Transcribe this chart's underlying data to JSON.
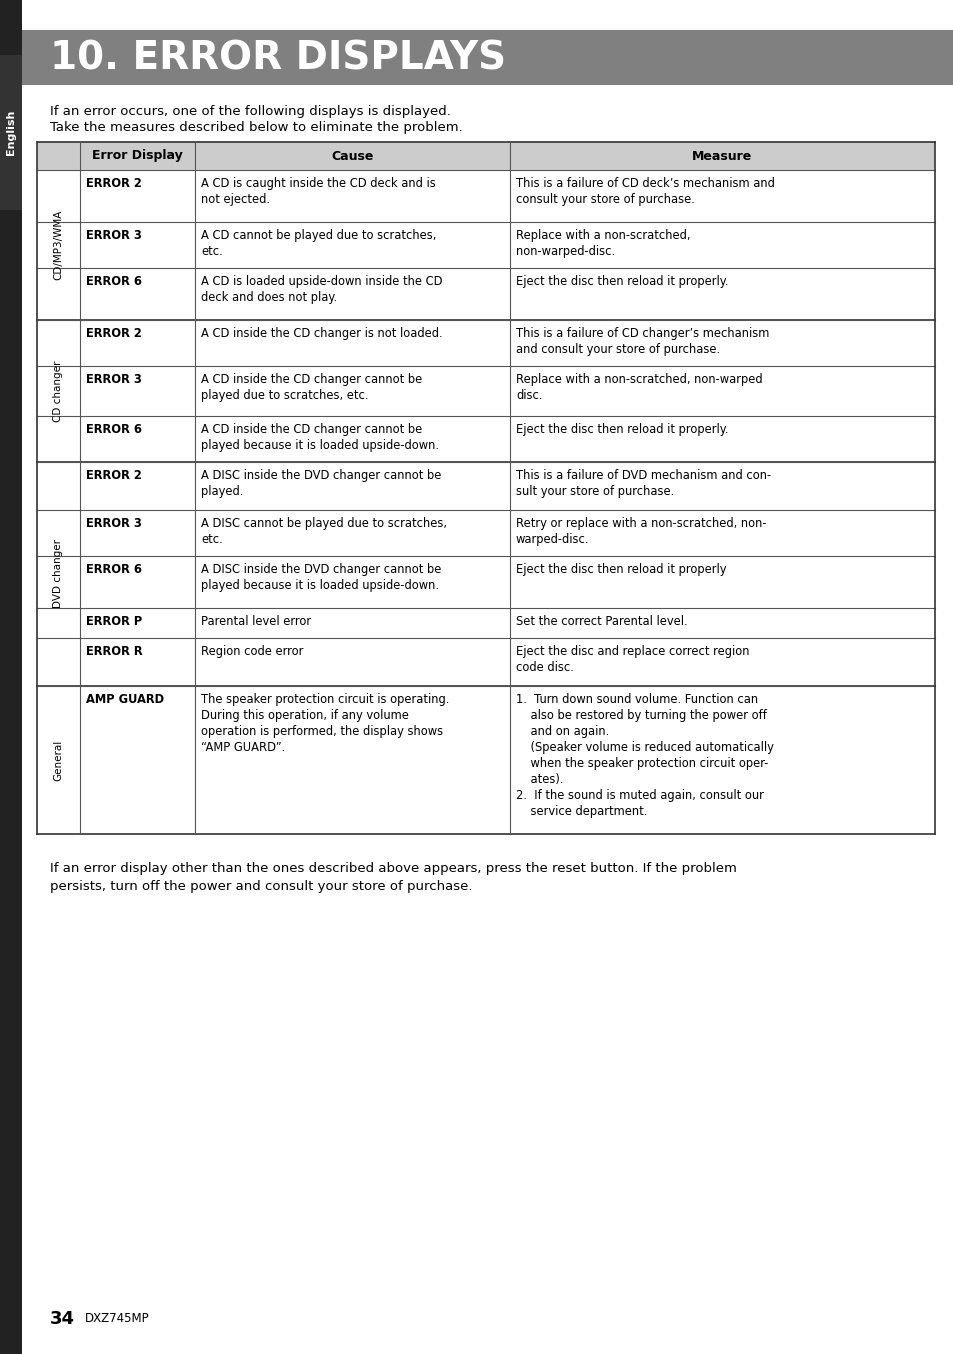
{
  "title": "10. ERROR DISPLAYS",
  "title_bg": "#808080",
  "title_color": "#ffffff",
  "page_bg": "#ffffff",
  "sidebar_bg": "#222222",
  "english_tab_bg": "#333333",
  "intro_line1": "If an error occurs, one of the following displays is displayed.",
  "intro_line2": "Take the measures described below to eliminate the problem.",
  "header_bg": "#cccccc",
  "header_error": "Error Display",
  "header_cause": "Cause",
  "header_measure": "Measure",
  "footer_text": "If an error display other than the ones described above appears, press the reset button. If the problem\npersists, turn off the power and consult your store of purchase.",
  "page_number": "34",
  "model": "DXZ745MP",
  "sections": [
    {
      "label": "CD/MP3/WMA",
      "rows": [
        {
          "error": "ERROR 2",
          "cause": "A CD is caught inside the CD deck and is\nnot ejected.",
          "measure": "This is a failure of CD deck’s mechanism and\nconsult your store of purchase."
        },
        {
          "error": "ERROR 3",
          "cause": "A CD cannot be played due to scratches,\netc.",
          "measure": "Replace with a non-scratched,\nnon-warped-disc."
        },
        {
          "error": "ERROR 6",
          "cause": "A CD is loaded upside-down inside the CD\ndeck and does not play.",
          "measure": "Eject the disc then reload it properly."
        }
      ]
    },
    {
      "label": "CD changer",
      "rows": [
        {
          "error": "ERROR 2",
          "cause": "A CD inside the CD changer is not loaded.",
          "measure": "This is a failure of CD changer’s mechanism\nand consult your store of purchase."
        },
        {
          "error": "ERROR 3",
          "cause": "A CD inside the CD changer cannot be\nplayed due to scratches, etc.",
          "measure": "Replace with a non-scratched, non-warped\ndisc."
        },
        {
          "error": "ERROR 6",
          "cause": "A CD inside the CD changer cannot be\nplayed because it is loaded upside-down.",
          "measure": "Eject the disc then reload it properly."
        }
      ]
    },
    {
      "label": "DVD changer",
      "rows": [
        {
          "error": "ERROR 2",
          "cause": "A DISC inside the DVD changer cannot be\nplayed.",
          "measure": "This is a failure of DVD mechanism and con-\nsult your store of purchase."
        },
        {
          "error": "ERROR 3",
          "cause": "A DISC cannot be played due to scratches,\netc.",
          "measure": "Retry or replace with a non-scratched, non-\nwarped-disc."
        },
        {
          "error": "ERROR 6",
          "cause": "A DISC inside the DVD changer cannot be\nplayed because it is loaded upside-down.",
          "measure": "Eject the disc then reload it properly"
        },
        {
          "error": "ERROR P",
          "cause": "Parental level error",
          "measure": "Set the correct Parental level."
        },
        {
          "error": "ERROR R",
          "cause": "Region code error",
          "measure": "Eject the disc and replace correct region\ncode disc."
        }
      ]
    },
    {
      "label": "General",
      "rows": [
        {
          "error": "AMP GUARD",
          "cause": "The speaker protection circuit is operating.\nDuring this operation, if any volume\noperation is performed, the display shows\n“AMP GUARD”.",
          "measure": "1.  Turn down sound volume. Function can\n    also be restored by turning the power off\n    and on again.\n    (Speaker volume is reduced automatically\n    when the speaker protection circuit oper-\n    ates).\n2.  If the sound is muted again, consult our\n    service department."
        }
      ]
    }
  ]
}
